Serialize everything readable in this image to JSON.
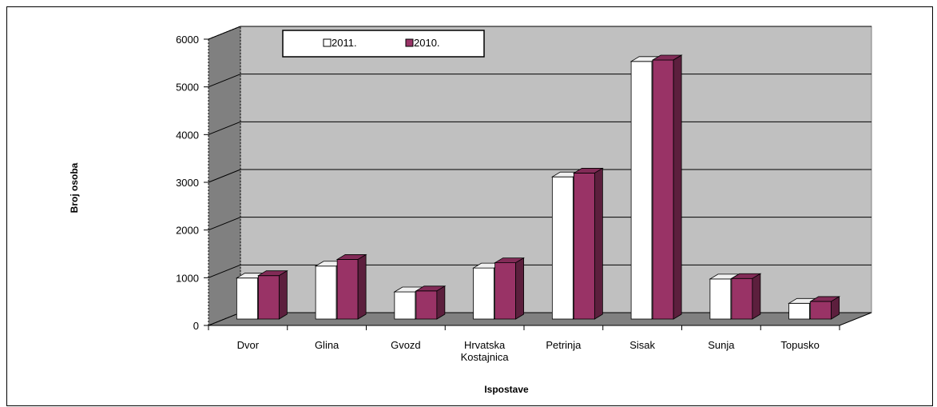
{
  "chart_data": {
    "type": "bar",
    "categories": [
      [
        "Dvor"
      ],
      [
        "Glina"
      ],
      [
        "Gvozd"
      ],
      [
        "Hrvatska",
        "Kostajnica"
      ],
      [
        "Petrinja"
      ],
      [
        "Sisak"
      ],
      [
        "Sunja"
      ],
      [
        "Topusko"
      ]
    ],
    "series": [
      {
        "name": "2011.",
        "color": "#ffffff",
        "values": [
          860,
          1110,
          570,
          1070,
          2980,
          5400,
          840,
          330
        ]
      },
      {
        "name": "2010.",
        "color": "#993366",
        "values": [
          910,
          1250,
          590,
          1180,
          3060,
          5430,
          850,
          370
        ]
      }
    ],
    "xlabel": "Ispostave",
    "ylabel": "Broj osoba",
    "ylim": [
      0,
      6000
    ],
    "yticks": [
      0,
      1000,
      2000,
      3000,
      4000,
      5000,
      6000
    ],
    "grid": true,
    "style": "3d",
    "legend": "top-left"
  }
}
